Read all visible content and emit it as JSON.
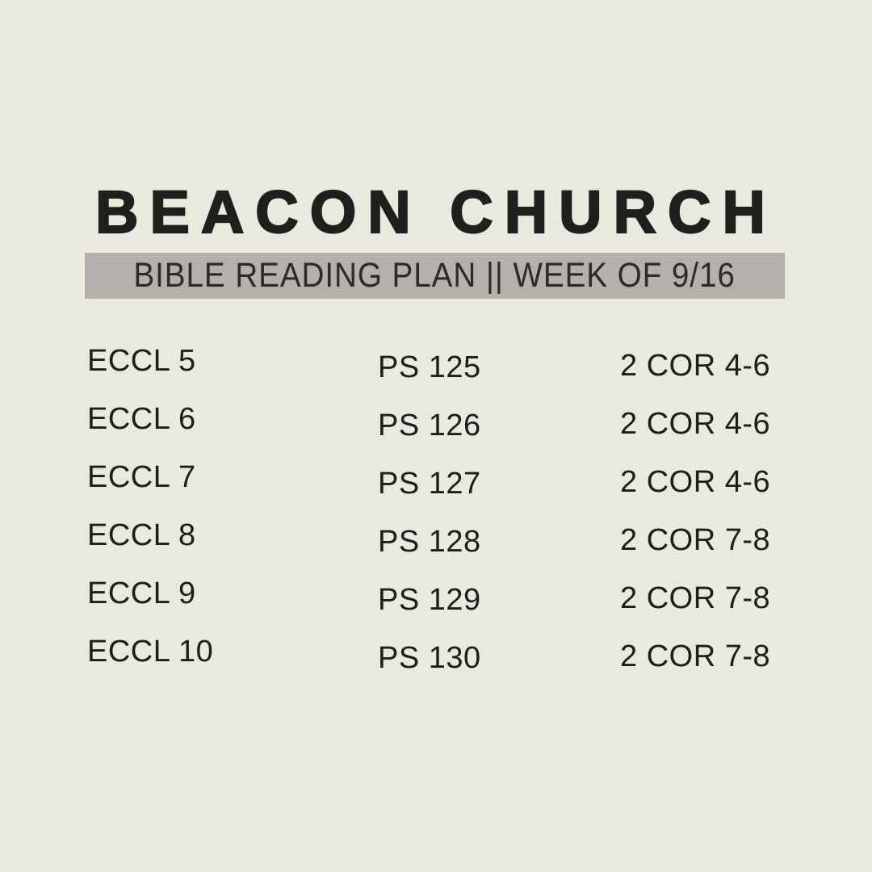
{
  "page": {
    "background_color": "#e9eadd"
  },
  "header": {
    "title": "BEACON CHURCH",
    "title_color": "#1f1f1d"
  },
  "banner": {
    "text": "BIBLE READING PLAN || WEEK OF 9/16",
    "background_color": "#b5b0ac",
    "text_color": "#2b2b29"
  },
  "reading_plan": {
    "columns": [
      {
        "name": "ecclesiastes",
        "entries": [
          "ECCL 5",
          "ECCL 6",
          "ECCL 7",
          "ECCL 8",
          "ECCL 9",
          "ECCL 10"
        ]
      },
      {
        "name": "psalms",
        "entries": [
          "PS 125",
          "PS 126",
          "PS 127",
          "PS 128",
          "PS 129",
          "PS 130"
        ]
      },
      {
        "name": "2-corinthians",
        "entries": [
          "2 COR 4-6",
          "2 COR 4-6",
          "2 COR 4-6",
          "2 COR 7-8",
          "2 COR 7-8",
          "2 COR 7-8"
        ]
      }
    ]
  }
}
